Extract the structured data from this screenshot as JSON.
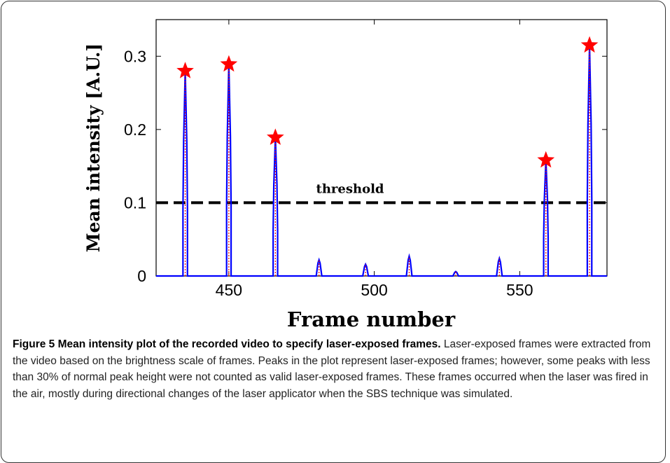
{
  "figure": {
    "caption_title": "Figure 5 Mean intensity plot of the recorded video to specify laser-exposed frames.",
    "caption_text": " Laser-exposed frames were extracted from the video based on the brightness scale of frames. Peaks in the plot represent laser-exposed frames; however, some peaks with less than 30% of normal peak height were not counted as valid laser-exposed frames. These frames occurred when the laser was fired in the air, mostly during directional changes of the laser applicator when the SBS technique was simulated."
  },
  "chart_data": {
    "type": "line",
    "xlabel": "Frame number",
    "ylabel": "Mean intensity [A.U.]",
    "xlim": [
      425,
      580
    ],
    "ylim": [
      0,
      0.35
    ],
    "xticks": [
      450,
      500,
      550
    ],
    "yticks": [
      0,
      0.1,
      0.2,
      0.3
    ],
    "ytick_labels": [
      "0",
      "0.1",
      "0.2",
      "0.3"
    ],
    "threshold": {
      "value": 0.1,
      "label": "threshold",
      "style": "dashed",
      "color": "#000000"
    },
    "series": [
      {
        "type": "peaks",
        "color": "#0000ff",
        "peaks": [
          {
            "x": 435,
            "y": 0.28
          },
          {
            "x": 450,
            "y": 0.289
          },
          {
            "x": 466,
            "y": 0.189
          },
          {
            "x": 481,
            "y": 0.022
          },
          {
            "x": 497,
            "y": 0.016
          },
          {
            "x": 512,
            "y": 0.027
          },
          {
            "x": 528,
            "y": 0.006
          },
          {
            "x": 543,
            "y": 0.024
          },
          {
            "x": 559,
            "y": 0.158
          },
          {
            "x": 574,
            "y": 0.315
          }
        ]
      },
      {
        "type": "markers",
        "marker": "star",
        "color": "#ff0000",
        "points": [
          {
            "x": 435,
            "y": 0.28
          },
          {
            "x": 450,
            "y": 0.289
          },
          {
            "x": 466,
            "y": 0.189
          },
          {
            "x": 559,
            "y": 0.158
          },
          {
            "x": 574,
            "y": 0.315
          }
        ]
      }
    ],
    "grid": false
  }
}
